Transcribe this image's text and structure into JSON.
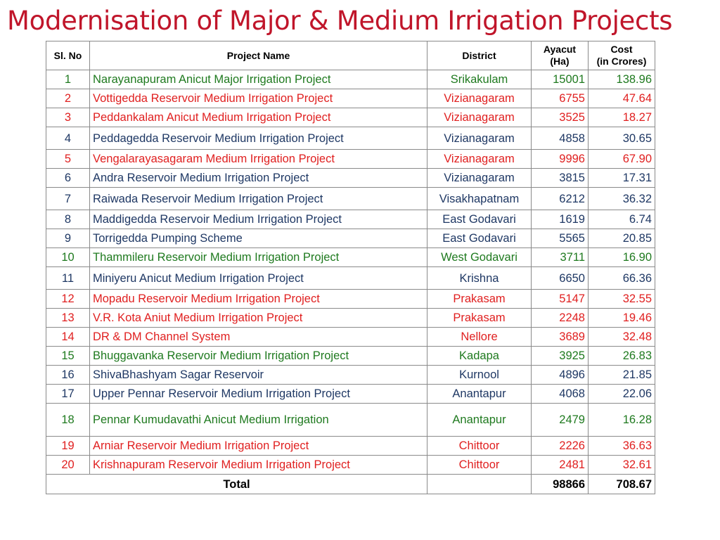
{
  "title": "Modernisation of Major & Medium Irrigation Projects",
  "headers": {
    "sl_no": "Sl. No",
    "project_name": "Project Name",
    "district": "District",
    "ayacut_line1": "Ayacut",
    "ayacut_line2": "(Ha)",
    "cost_line1": "Cost",
    "cost_line2": "(in Crores)"
  },
  "colors": {
    "title": "#c0152a",
    "green": "#1f7a1f",
    "red": "#e02020",
    "blue": "#1f3864"
  },
  "rows": [
    {
      "sl": "1",
      "name": "Narayanapuram  Anicut Major Irrigation Project",
      "district": "Srikakulam",
      "ayacut": "15001",
      "cost": "138.96",
      "color": "green"
    },
    {
      "sl": "2",
      "name": "Vottigedda Reservoir Medium Irrigation Project",
      "district": "Vizianagaram",
      "ayacut": "6755",
      "cost": "47.64",
      "color": "red"
    },
    {
      "sl": "3",
      "name": "Peddankalam Anicut Medium Irrigation Project",
      "district": "Vizianagaram",
      "ayacut": "3525",
      "cost": "18.27",
      "color": "red"
    },
    {
      "sl": "4",
      "name": "Peddagedda Reservoir Medium Irrigation Project",
      "district": "Vizianagaram",
      "ayacut": "4858",
      "cost": "30.65",
      "color": "blue"
    },
    {
      "sl": "5",
      "name": "Vengalarayasagaram Medium Irrigation Project",
      "district": "Vizianagaram",
      "ayacut": "9996",
      "cost": "67.90",
      "color": "red"
    },
    {
      "sl": "6",
      "name": "Andra Reservoir Medium Irrigation Project",
      "district": "Vizianagaram",
      "ayacut": "3815",
      "cost": "17.31",
      "color": "blue"
    },
    {
      "sl": "7",
      "name": "Raiwada Reservoir Medium Irrigation Project",
      "district": "Visakhapatnam",
      "ayacut": "6212",
      "cost": "36.32",
      "color": "blue"
    },
    {
      "sl": "8",
      "name": "Maddigedda Reservoir Medium Irrigation Project",
      "district": "East Godavari",
      "ayacut": "1619",
      "cost": "6.74",
      "color": "blue"
    },
    {
      "sl": "9",
      "name": "Torrigedda Pumping Scheme",
      "district": "East Godavari",
      "ayacut": "5565",
      "cost": "20.85",
      "color": "blue"
    },
    {
      "sl": "10",
      "name": "Thammileru Reservoir Medium Irrigation Project",
      "district": "West Godavari",
      "ayacut": "3711",
      "cost": "16.90",
      "color": "green"
    },
    {
      "sl": "11",
      "name": "Miniyeru Anicut Medium Irrigation Project",
      "district": "Krishna",
      "ayacut": "6650",
      "cost": "66.36",
      "color": "blue"
    },
    {
      "sl": "12",
      "name": "Mopadu Reservoir Medium Irrigation Project",
      "district": "Prakasam",
      "ayacut": "5147",
      "cost": "32.55",
      "color": "red"
    },
    {
      "sl": "13",
      "name": "V.R. Kota Aniut Medium Irrigation Project",
      "district": "Prakasam",
      "ayacut": "2248",
      "cost": "19.46",
      "color": "red"
    },
    {
      "sl": "14",
      "name": "DR & DM Channel System",
      "district": "Nellore",
      "ayacut": "3689",
      "cost": "32.48",
      "color": "red"
    },
    {
      "sl": "15",
      "name": "Bhuggavanka Reservoir Medium Irrigation Project",
      "district": "Kadapa",
      "ayacut": "3925",
      "cost": "26.83",
      "color": "green"
    },
    {
      "sl": "16",
      "name": "ShivaBhashyam Sagar Reservoir",
      "district": "Kurnool",
      "ayacut": "4896",
      "cost": "21.85",
      "color": "blue"
    },
    {
      "sl": "17",
      "name": "Upper Pennar Reservoir Medium Irrigation Project",
      "district": "Anantapur",
      "ayacut": "4068",
      "cost": "22.06",
      "color": "blue"
    },
    {
      "sl": "18",
      "name": "Pennar Kumudavathi Anicut Medium Irrigation",
      "district": "Anantapur",
      "ayacut": "2479",
      "cost": "16.28",
      "color": "green"
    },
    {
      "sl": "19",
      "name": "Arniar Reservoir Medium Irrigation Project",
      "district": "Chittoor",
      "ayacut": "2226",
      "cost": "36.63",
      "color": "red"
    },
    {
      "sl": "20",
      "name": "Krishnapuram Reservoir Medium Irrigation Project",
      "district": "Chittoor",
      "ayacut": "2481",
      "cost": "32.61",
      "color": "red"
    }
  ],
  "total": {
    "label": "Total",
    "ayacut": "98866",
    "cost": "708.67"
  }
}
